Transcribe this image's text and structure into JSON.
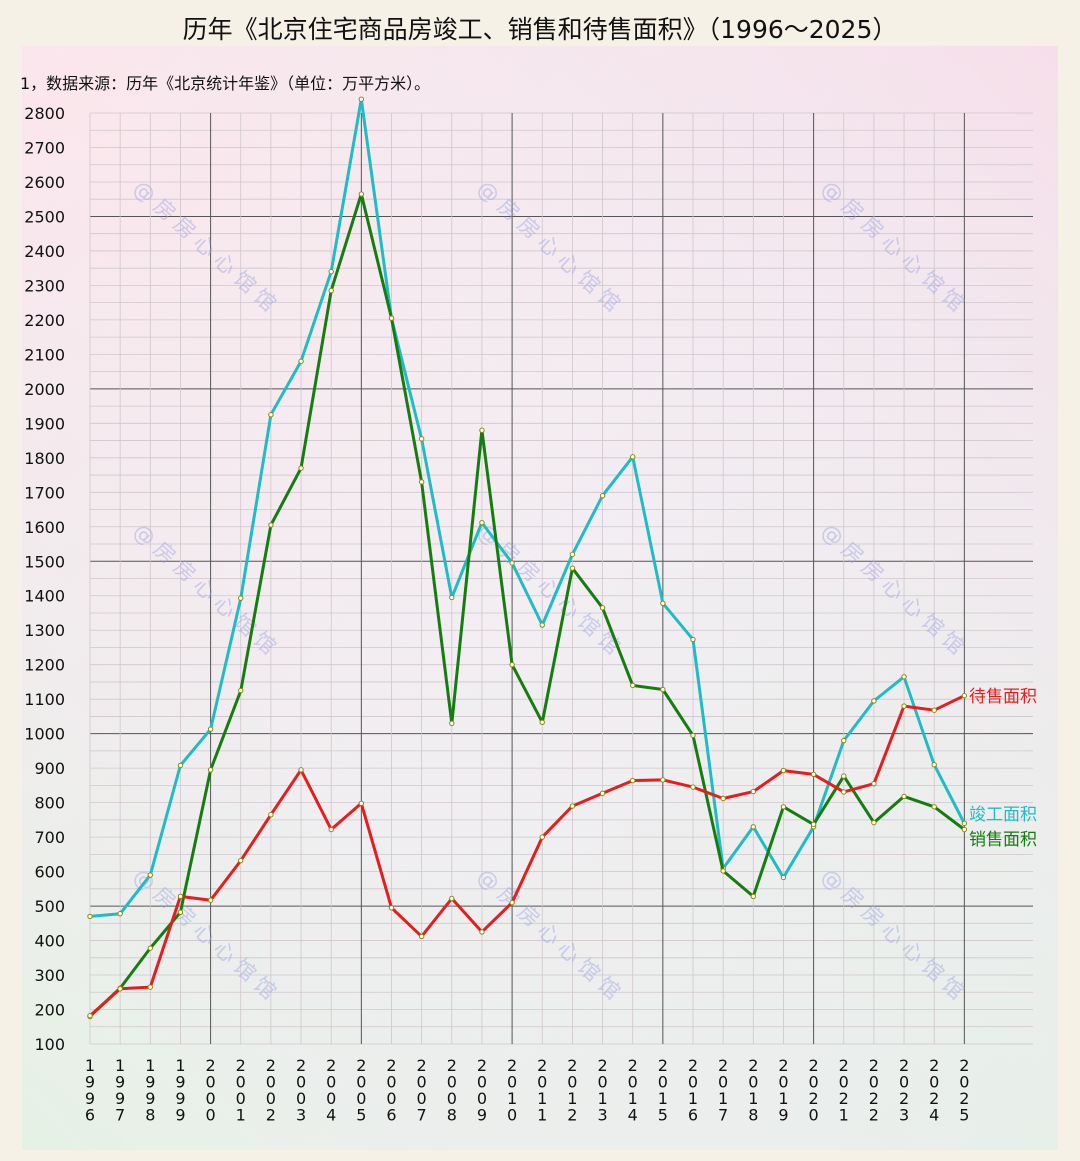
{
  "chart_data": {
    "type": "line",
    "title": "历年《北京住宅商品房竣工、销售和待售面积》（1996～2025）",
    "subtitle": "1，数据来源：历年《北京统计年鉴》（单位：万平方米）。",
    "x": [
      "1996",
      "1997",
      "1998",
      "1999",
      "2000",
      "2001",
      "2002",
      "2003",
      "2004",
      "2005",
      "2006",
      "2007",
      "2008",
      "2009",
      "2010",
      "2011",
      "2012",
      "2013",
      "2014",
      "2015",
      "2016",
      "2017",
      "2018",
      "2019",
      "2020",
      "2021",
      "2022",
      "2023",
      "2024",
      "2025"
    ],
    "ylim": [
      100,
      2800
    ],
    "yticks": [
      100,
      200,
      300,
      400,
      500,
      600,
      700,
      800,
      900,
      1000,
      1100,
      1200,
      1300,
      1400,
      1500,
      1600,
      1700,
      1800,
      1900,
      2000,
      2100,
      2200,
      2300,
      2400,
      2500,
      2600,
      2700,
      2800
    ],
    "grid": true,
    "series": [
      {
        "name": "竣工面积",
        "color": "#1fbcc4",
        "values": [
          470,
          478,
          590,
          908,
          1013,
          1393,
          1925,
          2080,
          2340,
          2840,
          2205,
          1855,
          1395,
          1612,
          1495,
          1315,
          1520,
          1690,
          1803,
          1378,
          1273,
          609,
          730,
          583,
          730,
          980,
          1095,
          1165,
          910,
          740
        ]
      },
      {
        "name": "销售面积",
        "color": "#157d10",
        "values": [
          180,
          262,
          378,
          482,
          895,
          1125,
          1605,
          1770,
          2285,
          2565,
          2205,
          1730,
          1030,
          1880,
          1200,
          1033,
          1480,
          1365,
          1140,
          1128,
          995,
          602,
          528,
          788,
          737,
          877,
          742,
          818,
          788,
          722
        ]
      },
      {
        "name": "待售面积",
        "color": "#e41e1e",
        "values": [
          182,
          260,
          265,
          528,
          517,
          632,
          765,
          895,
          722,
          798,
          495,
          412,
          522,
          425,
          510,
          700,
          790,
          827,
          864,
          866,
          845,
          812,
          832,
          893,
          882,
          831,
          855,
          1080,
          1068,
          1110
        ]
      }
    ],
    "legend_placement": "right-end-of-lines",
    "watermark": "@房房心心馆馆"
  }
}
